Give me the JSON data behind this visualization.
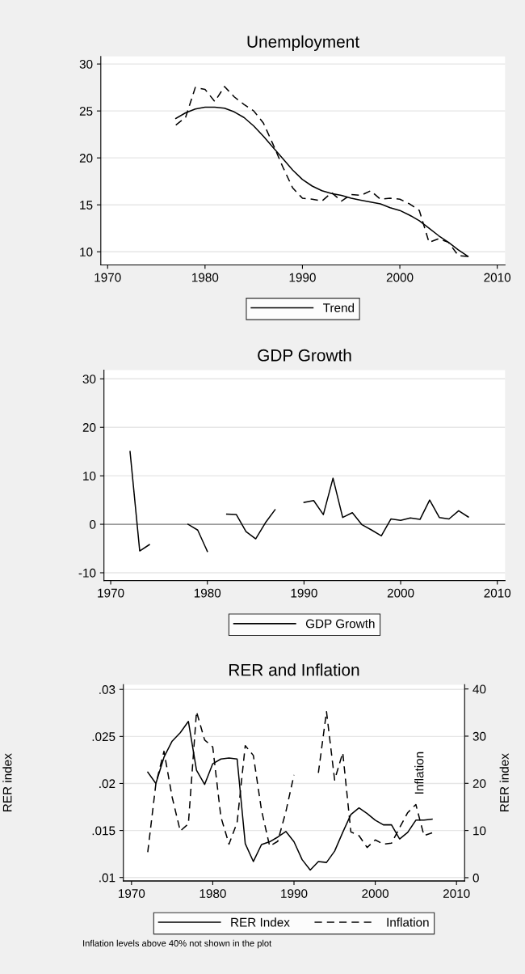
{
  "chart_data": [
    {
      "type": "line",
      "title": "Unemployment",
      "x": [
        1977,
        1978,
        1979,
        1980,
        1981,
        1982,
        1983,
        1984,
        1985,
        1986,
        1987,
        1988,
        1989,
        1990,
        1991,
        1992,
        1993,
        1994,
        1995,
        1996,
        1997,
        1998,
        1999,
        2000,
        2001,
        2002,
        2003,
        2004,
        2005,
        2006,
        2007
      ],
      "series": [
        {
          "color": "#000000",
          "line_style": "dashed",
          "values": [
            23.5,
            24.3,
            27.5,
            27.3,
            26.0,
            27.6,
            26.5,
            25.7,
            25.0,
            23.7,
            21.4,
            19.0,
            16.8,
            15.7,
            15.6,
            15.4,
            16.3,
            15.4,
            16.1,
            16.0,
            16.5,
            15.6,
            15.7,
            15.6,
            15.1,
            14.4,
            11.0,
            11.4,
            11.0,
            9.6,
            9.5
          ]
        },
        {
          "name": "Trend",
          "color": "#000000",
          "line_style": "solid",
          "values": [
            24.2,
            24.8,
            25.2,
            25.4,
            25.4,
            25.3,
            24.9,
            24.3,
            23.4,
            22.3,
            21.1,
            19.9,
            18.7,
            17.7,
            17.0,
            16.5,
            16.2,
            16.0,
            15.7,
            15.5,
            15.3,
            15.1,
            14.7,
            14.4,
            13.9,
            13.3,
            12.5,
            11.7,
            11.0,
            10.2,
            9.5
          ]
        }
      ],
      "xlim": [
        1969.3,
        2010.8
      ],
      "ylim": [
        8.6,
        30.8
      ],
      "xticks": [
        1970,
        1980,
        1990,
        2000,
        2010
      ],
      "yticks": [
        10,
        15,
        20,
        25,
        30
      ],
      "grid": "y",
      "legend": "bottom"
    },
    {
      "type": "line",
      "title": "GDP Growth",
      "x": [
        1972,
        1973,
        1974,
        1975,
        1976,
        1977,
        1978,
        1979,
        1980,
        1981,
        1982,
        1983,
        1984,
        1985,
        1986,
        1987,
        1988,
        1989,
        1990,
        1991,
        1992,
        1993,
        1994,
        1995,
        1996,
        1997,
        1998,
        1999,
        2000,
        2001,
        2002,
        2003,
        2004,
        2005,
        2006,
        2007
      ],
      "series": [
        {
          "name": "GDP Growth",
          "color": "#000000",
          "line_style": "solid",
          "values": [
            15,
            -5.5,
            -4.2,
            null,
            null,
            null,
            0.0,
            -1.2,
            -5.6,
            null,
            2.1,
            2.0,
            -1.5,
            -3.0,
            0.3,
            3.0,
            null,
            null,
            4.5,
            4.9,
            2.0,
            9.5,
            1.4,
            2.4,
            -0.1,
            -1.2,
            -2.4,
            1.1,
            0.8,
            1.3,
            1.0,
            5.0,
            1.4,
            1.1,
            2.8,
            1.5
          ]
        }
      ],
      "xlim": [
        1969.3,
        2010.8
      ],
      "ylim": [
        -11.6,
        31.8
      ],
      "xticks": [
        1970,
        1980,
        1990,
        2000,
        2010
      ],
      "yticks": [
        -10,
        0,
        10,
        20,
        30
      ],
      "grid": "y",
      "legend": "bottom",
      "ref_lines": [
        {
          "axis": "y",
          "value": 0,
          "color": "#808080"
        }
      ]
    },
    {
      "type": "line",
      "title": "RER and Inflation",
      "ylabel": "RER index",
      "y2label": "RER index",
      "x": [
        1972,
        1973,
        1974,
        1975,
        1976,
        1977,
        1978,
        1979,
        1980,
        1981,
        1982,
        1983,
        1984,
        1985,
        1986,
        1987,
        1988,
        1989,
        1990,
        1991,
        1992,
        1993,
        1994,
        1995,
        1996,
        1997,
        1998,
        1999,
        2000,
        2001,
        2002,
        2003,
        2004,
        2005,
        2006,
        2007
      ],
      "series": [
        {
          "name": "RER Index",
          "color": "#000000",
          "line_style": "solid",
          "values": [
            0.0212,
            0.02,
            0.0228,
            0.0245,
            0.0254,
            0.0266,
            0.0214,
            0.0199,
            0.0221,
            0.0226,
            0.0227,
            0.0226,
            0.0136,
            0.0117,
            0.0135,
            0.0138,
            0.0143,
            0.0149,
            0.0138,
            0.0119,
            0.0108,
            0.0117,
            0.0116,
            0.0128,
            0.0148,
            0.0167,
            0.0174,
            0.0168,
            0.0161,
            0.0156,
            0.0156,
            0.0141,
            0.0148,
            0.0161,
            0.0161,
            0.0162
          ]
        },
        {
          "name": "Inflation",
          "color": "#000000",
          "line_style": "dashed",
          "axis": "y2",
          "values": [
            5.4,
            19.9,
            26.8,
            17.1,
            9.9,
            11.4,
            35.2,
            29.2,
            27.7,
            12.9,
            7.1,
            11.7,
            28.0,
            25.9,
            14.3,
            6.7,
            7.7,
            14.0,
            21.8,
            null,
            null,
            22.2,
            35.2,
            20.7,
            26.5,
            9.7,
            8.9,
            6.4,
            8.0,
            7.1,
            7.3,
            10.6,
            13.8,
            15.5,
            8.9,
            9.5
          ]
        }
      ],
      "xlim": [
        1969.0,
        2011.0
      ],
      "ylim": [
        0.00963,
        0.0305
      ],
      "xticks": [
        1970,
        1980,
        1990,
        2000,
        2010
      ],
      "yticks": [
        {
          "value": 0.01,
          "label": ".01"
        },
        {
          "value": 0.015,
          "label": ".015"
        },
        {
          "value": 0.02,
          "label": ".02"
        },
        {
          "value": 0.025,
          "label": ".025"
        },
        {
          "value": 0.03,
          "label": ".03"
        }
      ],
      "y2lim": [
        -0.7,
        40.9
      ],
      "y2ticks": [
        0,
        10,
        20,
        30,
        40
      ],
      "grid": "y",
      "legend": "bottom",
      "annotations": [
        "Inflation",
        "Inflation levels above 40% not shown in the plot"
      ]
    }
  ]
}
